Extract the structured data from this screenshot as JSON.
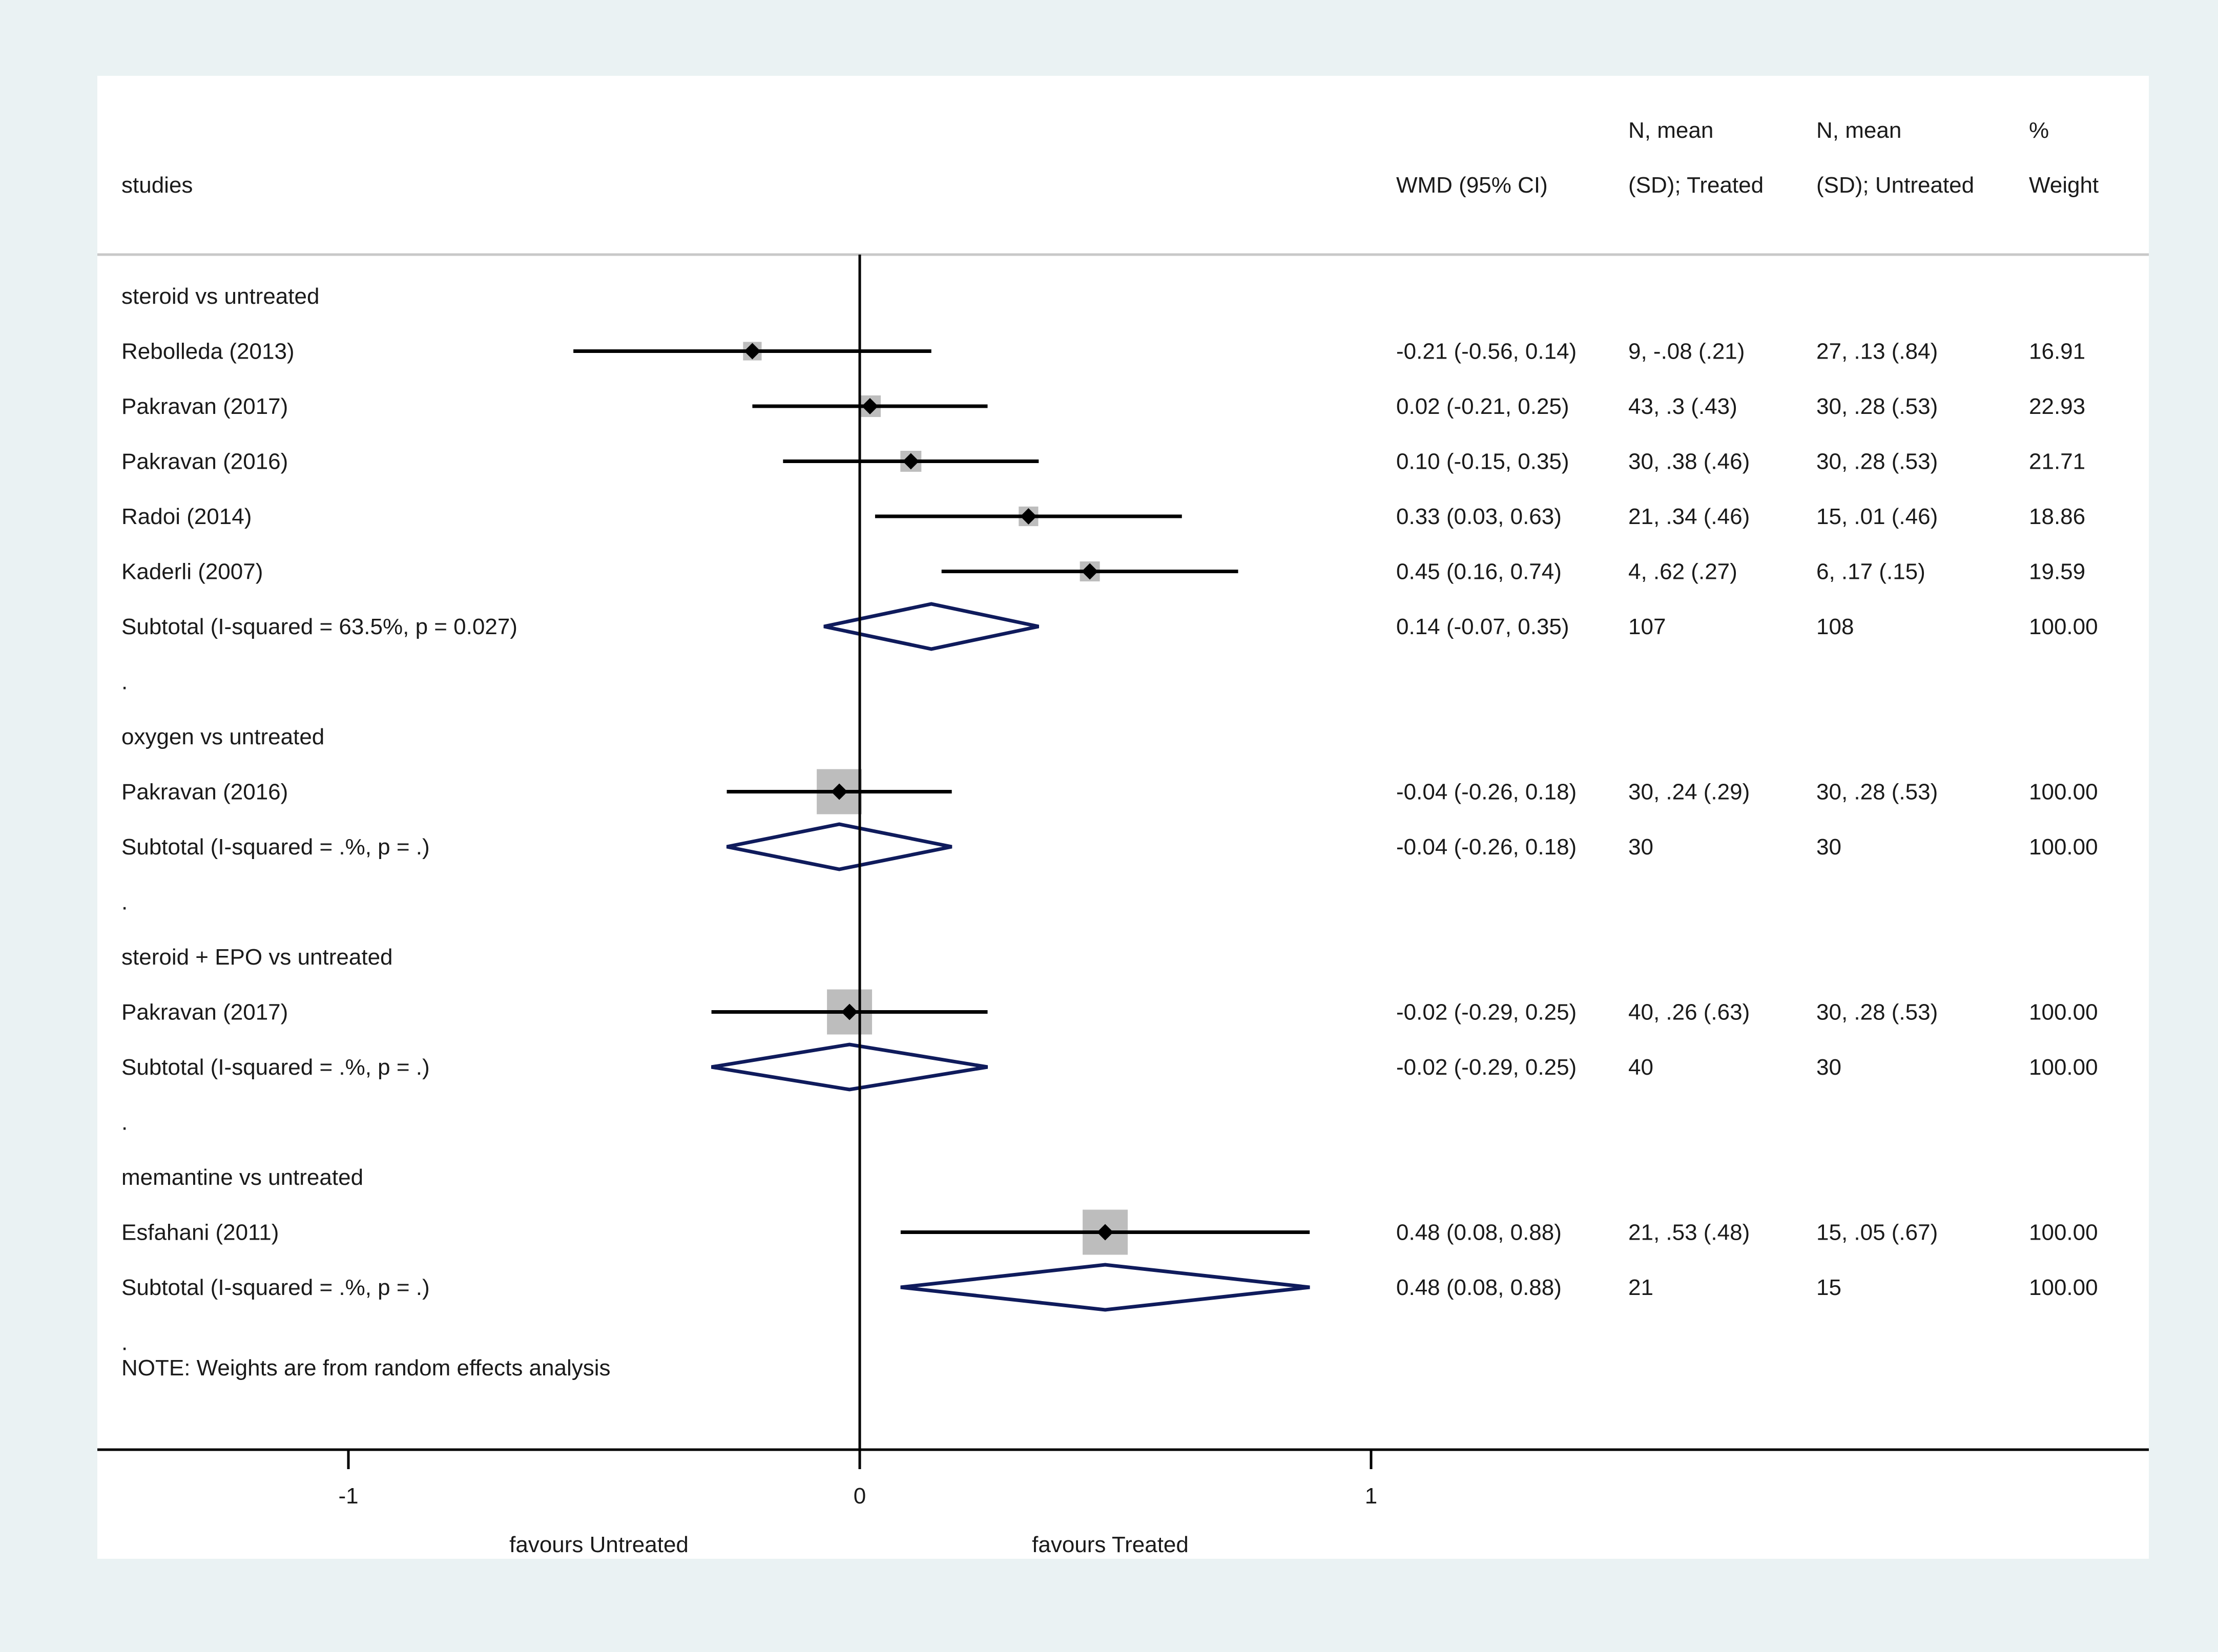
{
  "colors": {
    "outer_background": "#eaf2f3",
    "plot_background": "#ffffff",
    "box_fill": "#bdbdbd",
    "diamond_stroke": "#0f1b5c",
    "ci_line": "#000000",
    "header_rule": "#c8c8c8"
  },
  "chart_data": {
    "type": "forest",
    "effect_measure": "WMD",
    "x_range": [
      -1.5,
      2.5
    ],
    "x_ticks": [
      -1,
      0,
      1
    ],
    "x_tick_labels": [
      "-1",
      "0",
      "1"
    ],
    "favours_left": "favours Untreated",
    "favours_right": "favours Treated",
    "note": "NOTE: Weights are from random effects analysis",
    "columns": {
      "studies": "studies",
      "ci": "WMD (95% CI)",
      "treated_line1": "N, mean",
      "treated_line2": "(SD); Treated",
      "untreated_line1": "N, mean",
      "untreated_line2": "(SD); Untreated",
      "weight_line1": "%",
      "weight_line2": "Weight"
    },
    "rows": [
      {
        "kind": "group",
        "label": "steroid vs untreated"
      },
      {
        "kind": "study",
        "label": "Rebolleda (2013)",
        "est": -0.21,
        "lo": -0.56,
        "hi": 0.14,
        "ci": "-0.21 (-0.56, 0.14)",
        "treated": "9, -.08 (.21)",
        "untreated": "27, .13 (.84)",
        "weight": "16.91",
        "w": 16.91
      },
      {
        "kind": "study",
        "label": "Pakravan (2017)",
        "est": 0.02,
        "lo": -0.21,
        "hi": 0.25,
        "ci": "0.02 (-0.21, 0.25)",
        "treated": "43, .3 (.43)",
        "untreated": "30, .28 (.53)",
        "weight": "22.93",
        "w": 22.93
      },
      {
        "kind": "study",
        "label": "Pakravan (2016)",
        "est": 0.1,
        "lo": -0.15,
        "hi": 0.35,
        "ci": "0.10 (-0.15, 0.35)",
        "treated": "30, .38 (.46)",
        "untreated": "30, .28 (.53)",
        "weight": "21.71",
        "w": 21.71
      },
      {
        "kind": "study",
        "label": "Radoi (2014)",
        "est": 0.33,
        "lo": 0.03,
        "hi": 0.63,
        "ci": "0.33 (0.03, 0.63)",
        "treated": "21, .34 (.46)",
        "untreated": "15, .01 (.46)",
        "weight": "18.86",
        "w": 18.86
      },
      {
        "kind": "study",
        "label": "Kaderli (2007)",
        "est": 0.45,
        "lo": 0.16,
        "hi": 0.74,
        "ci": "0.45 (0.16, 0.74)",
        "treated": "4, .62 (.27)",
        "untreated": "6, .17 (.15)",
        "weight": "19.59",
        "w": 19.59
      },
      {
        "kind": "subtotal",
        "label": "Subtotal  (I-squared = 63.5%, p = 0.027)",
        "est": 0.14,
        "lo": -0.07,
        "hi": 0.35,
        "ci": "0.14 (-0.07, 0.35)",
        "treated": "107",
        "untreated": "108",
        "weight": "100.00"
      },
      {
        "kind": "sep",
        "label": "."
      },
      {
        "kind": "group",
        "label": "oxygen vs untreated"
      },
      {
        "kind": "study",
        "label": "Pakravan (2016)",
        "est": -0.04,
        "lo": -0.26,
        "hi": 0.18,
        "ci": "-0.04 (-0.26, 0.18)",
        "treated": "30, .24 (.29)",
        "untreated": "30, .28 (.53)",
        "weight": "100.00",
        "w": 100
      },
      {
        "kind": "subtotal",
        "label": "Subtotal  (I-squared = .%, p = .)",
        "est": -0.04,
        "lo": -0.26,
        "hi": 0.18,
        "ci": "-0.04 (-0.26, 0.18)",
        "treated": "30",
        "untreated": "30",
        "weight": "100.00"
      },
      {
        "kind": "sep",
        "label": "."
      },
      {
        "kind": "group",
        "label": "steroid + EPO vs untreated"
      },
      {
        "kind": "study",
        "label": "Pakravan (2017)",
        "est": -0.02,
        "lo": -0.29,
        "hi": 0.25,
        "ci": "-0.02 (-0.29, 0.25)",
        "treated": "40, .26 (.63)",
        "untreated": "30, .28 (.53)",
        "weight": "100.00",
        "w": 100
      },
      {
        "kind": "subtotal",
        "label": "Subtotal  (I-squared = .%, p = .)",
        "est": -0.02,
        "lo": -0.29,
        "hi": 0.25,
        "ci": "-0.02 (-0.29, 0.25)",
        "treated": "40",
        "untreated": "30",
        "weight": "100.00"
      },
      {
        "kind": "sep",
        "label": "."
      },
      {
        "kind": "group",
        "label": "memantine vs untreated"
      },
      {
        "kind": "study",
        "label": "Esfahani (2011)",
        "est": 0.48,
        "lo": 0.08,
        "hi": 0.88,
        "ci": "0.48 (0.08, 0.88)",
        "treated": "21, .53 (.48)",
        "untreated": "15, .05 (.67)",
        "weight": "100.00",
        "w": 100
      },
      {
        "kind": "subtotal",
        "label": "Subtotal  (I-squared = .%, p = .)",
        "est": 0.48,
        "lo": 0.08,
        "hi": 0.88,
        "ci": "0.48 (0.08, 0.88)",
        "treated": "21",
        "untreated": "15",
        "weight": "100.00"
      },
      {
        "kind": "sep",
        "label": "."
      }
    ]
  }
}
